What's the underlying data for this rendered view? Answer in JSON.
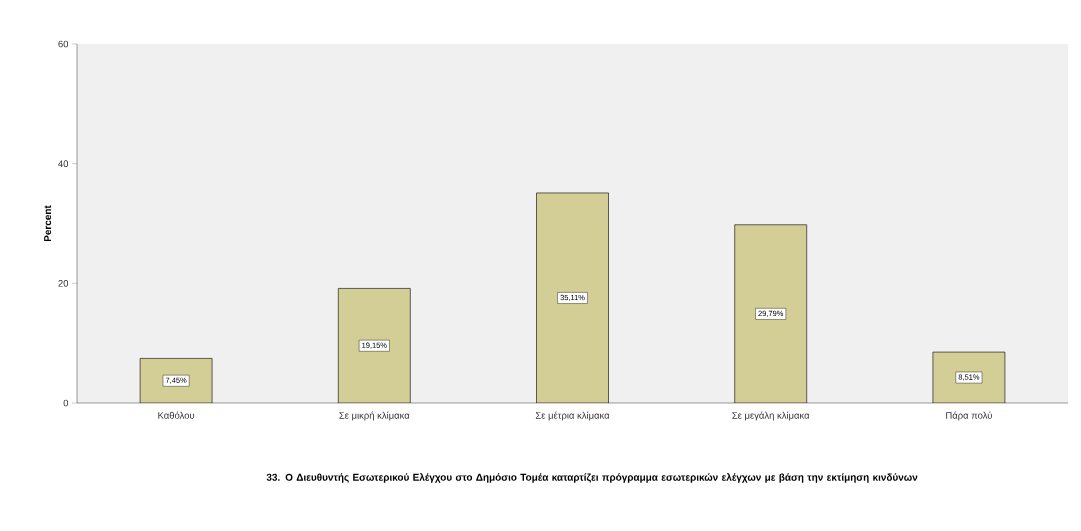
{
  "chart_data": {
    "type": "bar",
    "title": "33. Ο Διευθυντής Εσωτερικού Ελέγχου στο Δημόσιο Τομέα καταρτίζει πρόγραμμα εσωτερικών ελέγχων με βάση την εκτίμηση κινδύνων",
    "ylabel": "Percent",
    "categories": [
      "Καθόλου",
      "Σε μικρή κλίμακα",
      "Σε μέτρια κλίμακα",
      "Σε μεγάλη κλίμακα",
      "Πάρα πολύ"
    ],
    "values": [
      7.45,
      19.15,
      35.11,
      29.79,
      8.51
    ],
    "value_labels": [
      "7,45%",
      "19,15%",
      "35,11%",
      "29,79%",
      "8,51%"
    ],
    "color": "#d3ce96",
    "ylim": [
      0,
      60
    ],
    "yticks": [
      0,
      20,
      40,
      60
    ]
  }
}
